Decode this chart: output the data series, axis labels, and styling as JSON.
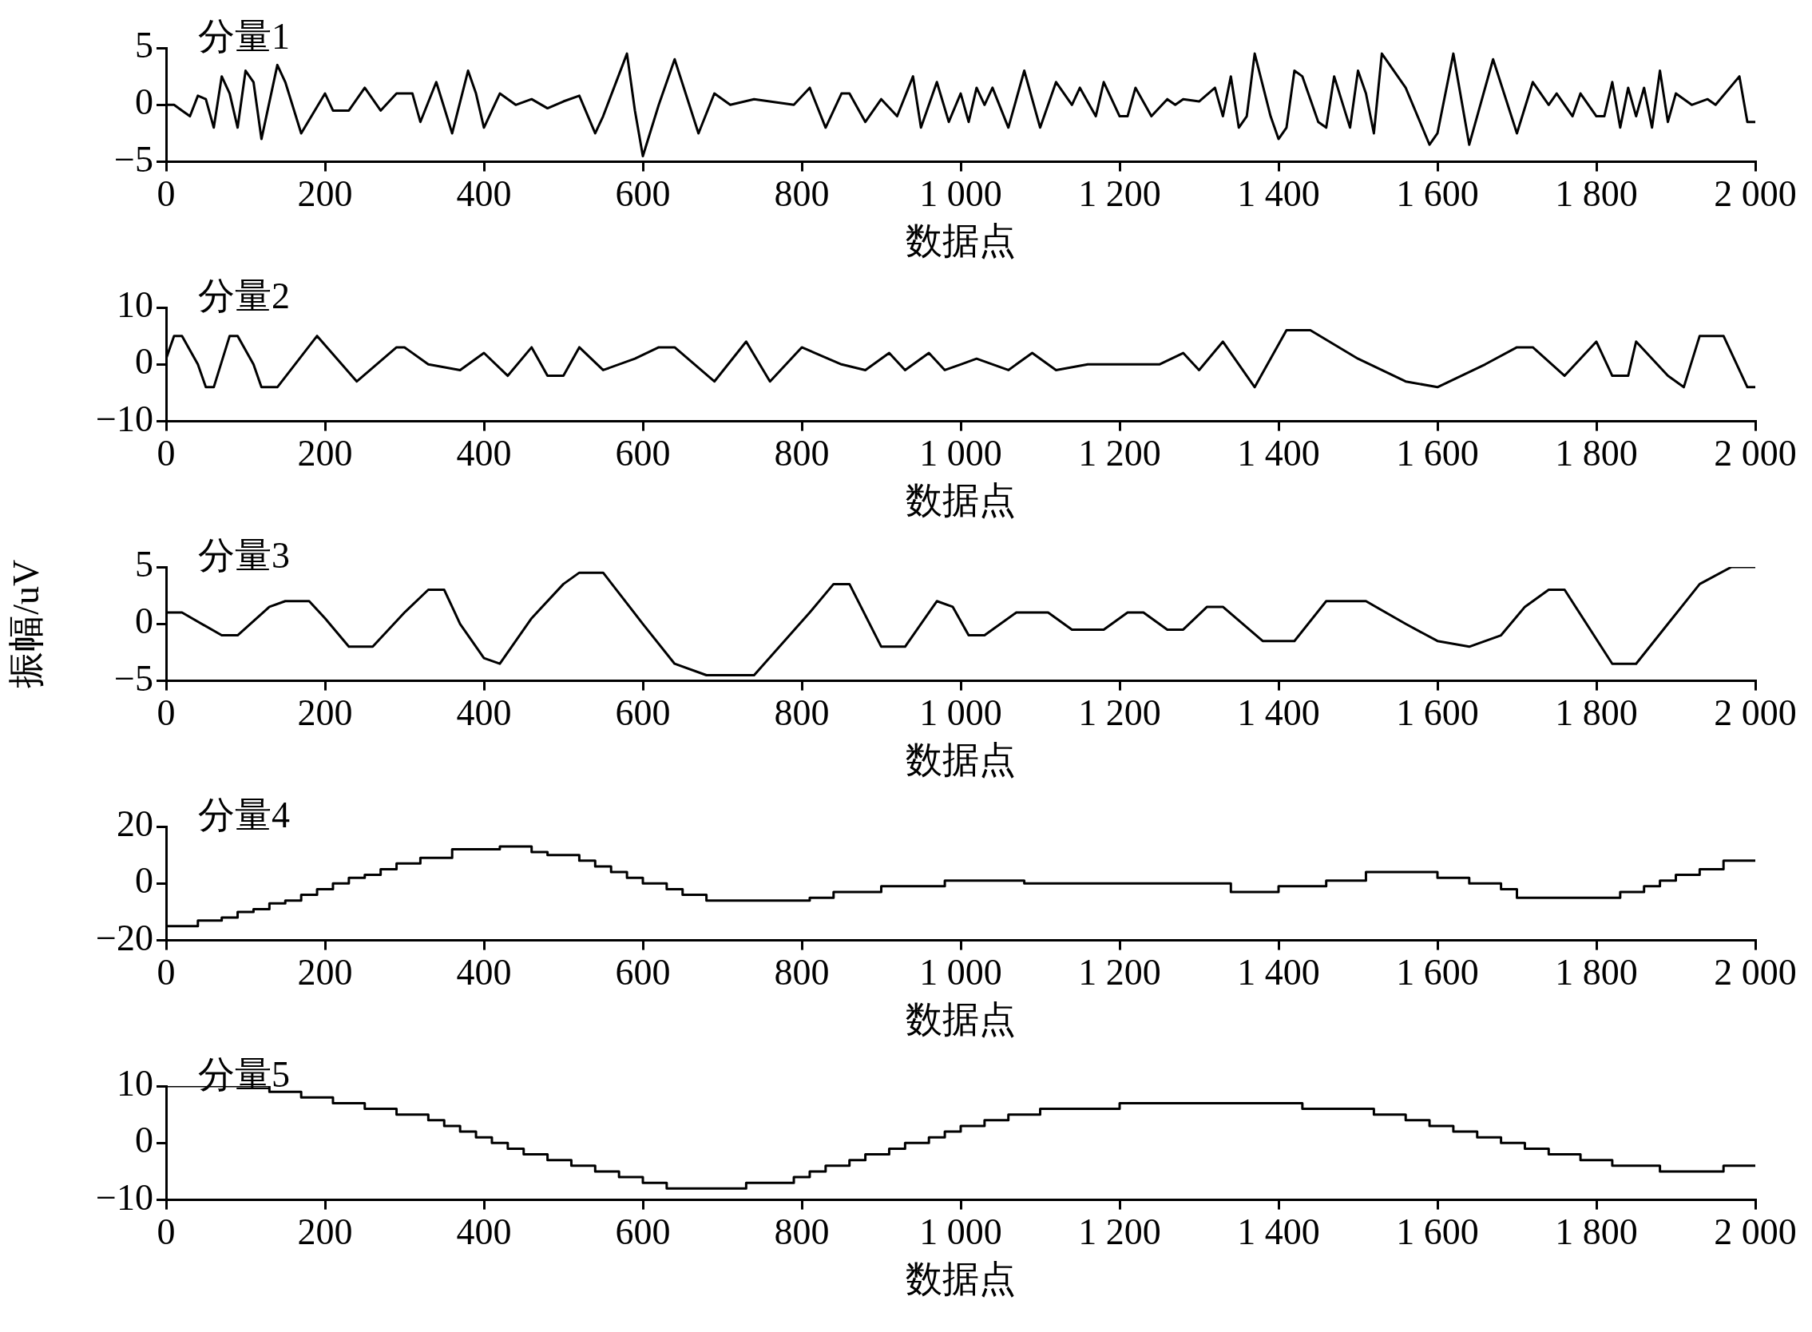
{
  "chart_data": [
    {
      "type": "line",
      "title": "分量1",
      "xlabel": "数据点",
      "color": "#000000",
      "xlim": [
        0,
        2000
      ],
      "ylim": [
        -5,
        5
      ],
      "grid": false,
      "xticks": [
        0,
        200,
        400,
        600,
        800,
        {
          "value": 1000,
          "label": "1 000"
        },
        {
          "value": 1200,
          "label": "1 200"
        },
        {
          "value": 1400,
          "label": "1 400"
        },
        {
          "value": 1600,
          "label": "1 600"
        },
        {
          "value": 1800,
          "label": "1 800"
        },
        {
          "value": 2000,
          "label": "2 000"
        }
      ],
      "yticks": [
        {
          "value": -5,
          "label": "−5"
        },
        0,
        5
      ],
      "x": [
        0,
        10,
        20,
        30,
        40,
        50,
        60,
        70,
        80,
        90,
        100,
        110,
        120,
        140,
        150,
        170,
        200,
        210,
        230,
        250,
        270,
        290,
        310,
        320,
        340,
        360,
        380,
        390,
        400,
        420,
        440,
        460,
        480,
        500,
        520,
        540,
        550,
        580,
        590,
        600,
        620,
        640,
        670,
        690,
        710,
        740,
        790,
        810,
        830,
        850,
        860,
        880,
        900,
        920,
        940,
        950,
        970,
        985,
        1000,
        1010,
        1020,
        1030,
        1040,
        1060,
        1080,
        1100,
        1120,
        1140,
        1150,
        1170,
        1180,
        1200,
        1210,
        1220,
        1240,
        1260,
        1270,
        1280,
        1300,
        1320,
        1330,
        1340,
        1350,
        1360,
        1370,
        1390,
        1400,
        1410,
        1420,
        1430,
        1450,
        1460,
        1470,
        1490,
        1500,
        1510,
        1520,
        1530,
        1560,
        1590,
        1600,
        1620,
        1640,
        1670,
        1700,
        1720,
        1740,
        1750,
        1770,
        1780,
        1800,
        1810,
        1820,
        1830,
        1840,
        1850,
        1860,
        1870,
        1880,
        1890,
        1900,
        1920,
        1940,
        1950,
        1980,
        1990,
        2000
      ],
      "values": [
        0,
        0,
        -0.5,
        -1,
        0.8,
        0.5,
        -2,
        2.5,
        1,
        -2,
        3,
        2,
        -3,
        3.5,
        2,
        -2.5,
        1,
        -0.5,
        -0.5,
        1.5,
        -0.5,
        1,
        1,
        -1.5,
        2,
        -2.5,
        3,
        1,
        -2,
        1,
        0,
        0.5,
        -0.3,
        0.3,
        0.8,
        -2.5,
        -1,
        4.5,
        -0.5,
        -4.5,
        0,
        4,
        -2.5,
        1,
        0,
        0.5,
        0,
        1.5,
        -2,
        1,
        1,
        -1.5,
        0.5,
        -1,
        2.5,
        -2,
        2,
        -1.5,
        1,
        -1.5,
        1.5,
        0,
        1.5,
        -2,
        3,
        -2,
        2,
        0,
        1.5,
        -1,
        2,
        -1,
        -1,
        1.5,
        -1,
        0.5,
        0,
        0.5,
        0.3,
        1.5,
        -1,
        2.5,
        -2,
        -1,
        4.5,
        -1,
        -3,
        -2,
        3,
        2.5,
        -1.5,
        -2,
        2.5,
        -2,
        3,
        1,
        -2.5,
        4.5,
        1.5,
        -3.5,
        -2.5,
        4.5,
        -3.5,
        4,
        -2.5,
        2,
        0,
        1,
        -1,
        1,
        -1,
        -1,
        2,
        -2,
        1.5,
        -1,
        1.5,
        -2,
        3,
        -1.5,
        1,
        0,
        0.5,
        0,
        2.5,
        -1.5,
        -1.5
      ]
    },
    {
      "type": "line",
      "title": "分量2",
      "xlabel": "数据点",
      "color": "#000000",
      "xlim": [
        0,
        2000
      ],
      "ylim": [
        -10,
        10
      ],
      "grid": false,
      "xticks": [
        0,
        200,
        400,
        600,
        800,
        {
          "value": 1000,
          "label": "1 000"
        },
        {
          "value": 1200,
          "label": "1 200"
        },
        {
          "value": 1400,
          "label": "1 400"
        },
        {
          "value": 1600,
          "label": "1 600"
        },
        {
          "value": 1800,
          "label": "1 800"
        },
        {
          "value": 2000,
          "label": "2 000"
        }
      ],
      "yticks": [
        {
          "value": -10,
          "label": "−10"
        },
        0,
        10
      ],
      "x": [
        0,
        10,
        20,
        40,
        50,
        60,
        80,
        90,
        110,
        120,
        140,
        190,
        240,
        290,
        300,
        330,
        370,
        400,
        430,
        460,
        480,
        500,
        520,
        550,
        590,
        620,
        640,
        690,
        730,
        760,
        800,
        850,
        880,
        910,
        930,
        960,
        980,
        1000,
        1020,
        1060,
        1090,
        1120,
        1160,
        1250,
        1280,
        1300,
        1330,
        1370,
        1410,
        1440,
        1500,
        1560,
        1600,
        1660,
        1700,
        1720,
        1760,
        1800,
        1820,
        1840,
        1850,
        1890,
        1910,
        1930,
        1960,
        1990,
        2000
      ],
      "values": [
        1,
        5,
        5,
        0,
        -4,
        -4,
        5,
        5,
        0,
        -4,
        -4,
        5,
        -3,
        3,
        3,
        0,
        -1,
        2,
        -2,
        3,
        -2,
        -2,
        3,
        -1,
        1,
        3,
        3,
        -3,
        4,
        -3,
        3,
        0,
        -1,
        2,
        -1,
        2,
        -1,
        0,
        1,
        -1,
        2,
        -1,
        0,
        0,
        2,
        -1,
        4,
        -4,
        6,
        6,
        1,
        -3,
        -4,
        0,
        3,
        3,
        -2,
        4,
        -2,
        -2,
        4,
        -2,
        -4,
        5,
        5,
        -4,
        -4
      ]
    },
    {
      "type": "line",
      "title": "分量3",
      "xlabel": "数据点",
      "ylabel": "振幅/uV",
      "color": "#000000",
      "xlim": [
        0,
        2000
      ],
      "ylim": [
        -5,
        5
      ],
      "grid": false,
      "xticks": [
        0,
        200,
        400,
        600,
        800,
        {
          "value": 1000,
          "label": "1 000"
        },
        {
          "value": 1200,
          "label": "1 200"
        },
        {
          "value": 1400,
          "label": "1 400"
        },
        {
          "value": 1600,
          "label": "1 600"
        },
        {
          "value": 1800,
          "label": "1 800"
        },
        {
          "value": 2000,
          "label": "2 000"
        }
      ],
      "yticks": [
        {
          "value": -5,
          "label": "−5"
        },
        0,
        5
      ],
      "x": [
        0,
        20,
        70,
        90,
        130,
        150,
        180,
        200,
        230,
        260,
        300,
        330,
        350,
        370,
        400,
        420,
        460,
        500,
        520,
        550,
        600,
        640,
        680,
        740,
        810,
        840,
        860,
        900,
        930,
        970,
        990,
        1010,
        1030,
        1070,
        1110,
        1140,
        1180,
        1210,
        1230,
        1260,
        1280,
        1310,
        1330,
        1380,
        1420,
        1460,
        1510,
        1560,
        1600,
        1640,
        1680,
        1710,
        1740,
        1760,
        1820,
        1850,
        1890,
        1930,
        1970,
        2000
      ],
      "values": [
        1,
        1,
        -1,
        -1,
        1.5,
        2,
        2,
        0.5,
        -2,
        -2,
        1,
        3,
        3,
        0,
        -3,
        -3.5,
        0.5,
        3.5,
        4.5,
        4.5,
        0,
        -3.5,
        -4.5,
        -4.5,
        1,
        3.5,
        3.5,
        -2,
        -2,
        2,
        1.5,
        -1,
        -1,
        1,
        1,
        -0.5,
        -0.5,
        1,
        1,
        -0.5,
        -0.5,
        1.5,
        1.5,
        -1.5,
        -1.5,
        2,
        2,
        0,
        -1.5,
        -2,
        -1,
        1.5,
        3,
        3,
        -3.5,
        -3.5,
        0,
        3.5,
        5,
        5
      ]
    },
    {
      "type": "step",
      "title": "分量4",
      "xlabel": "数据点",
      "color": "#000000",
      "xlim": [
        0,
        2000
      ],
      "ylim": [
        -20,
        20
      ],
      "grid": false,
      "xticks": [
        0,
        200,
        400,
        600,
        800,
        {
          "value": 1000,
          "label": "1 000"
        },
        {
          "value": 1200,
          "label": "1 200"
        },
        {
          "value": 1400,
          "label": "1 400"
        },
        {
          "value": 1600,
          "label": "1 600"
        },
        {
          "value": 1800,
          "label": "1 800"
        },
        {
          "value": 2000,
          "label": "2 000"
        }
      ],
      "yticks": [
        {
          "value": -20,
          "label": "−20"
        },
        0,
        20
      ],
      "x": [
        0,
        40,
        70,
        90,
        110,
        130,
        150,
        170,
        190,
        210,
        230,
        250,
        270,
        290,
        320,
        360,
        420,
        460,
        480,
        520,
        540,
        560,
        580,
        600,
        630,
        650,
        680,
        810,
        840,
        900,
        980,
        1080,
        1340,
        1400,
        1460,
        1510,
        1600,
        1640,
        1680,
        1700,
        1830,
        1860,
        1880,
        1900,
        1930,
        1960,
        2000
      ],
      "values": [
        -15,
        -13,
        -12,
        -10,
        -9,
        -7,
        -6,
        -4,
        -2,
        0,
        2,
        3,
        5,
        7,
        9,
        12,
        13,
        11,
        10,
        8,
        6,
        4,
        2,
        0,
        -2,
        -4,
        -6,
        -5,
        -3,
        -1,
        1,
        0,
        -3,
        -1,
        1,
        4,
        2,
        0,
        -2,
        -5,
        -3,
        -1,
        1,
        3,
        5,
        8,
        8
      ]
    },
    {
      "type": "step",
      "title": "分量5",
      "xlabel": "数据点",
      "color": "#000000",
      "xlim": [
        0,
        2000
      ],
      "ylim": [
        -10,
        10
      ],
      "grid": false,
      "xticks": [
        0,
        200,
        400,
        600,
        800,
        {
          "value": 1000,
          "label": "1 000"
        },
        {
          "value": 1200,
          "label": "1 200"
        },
        {
          "value": 1400,
          "label": "1 400"
        },
        {
          "value": 1600,
          "label": "1 600"
        },
        {
          "value": 1800,
          "label": "1 800"
        },
        {
          "value": 2000,
          "label": "2 000"
        }
      ],
      "yticks": [
        {
          "value": -10,
          "label": "−10"
        },
        0,
        10
      ],
      "x": [
        0,
        130,
        170,
        210,
        250,
        290,
        330,
        350,
        370,
        390,
        410,
        430,
        450,
        480,
        510,
        540,
        570,
        600,
        630,
        730,
        790,
        810,
        830,
        860,
        880,
        910,
        930,
        960,
        980,
        1000,
        1030,
        1060,
        1100,
        1200,
        1430,
        1520,
        1560,
        1590,
        1620,
        1650,
        1680,
        1710,
        1740,
        1780,
        1820,
        1880,
        1960,
        2000
      ],
      "values": [
        10,
        9,
        8,
        7,
        6,
        5,
        4,
        3,
        2,
        1,
        0,
        -1,
        -2,
        -3,
        -4,
        -5,
        -6,
        -7,
        -8,
        -7,
        -6,
        -5,
        -4,
        -3,
        -2,
        -1,
        0,
        1,
        2,
        3,
        4,
        5,
        6,
        7,
        6,
        5,
        4,
        3,
        2,
        1,
        0,
        -1,
        -2,
        -3,
        -4,
        -5,
        -4,
        -4
      ]
    }
  ]
}
